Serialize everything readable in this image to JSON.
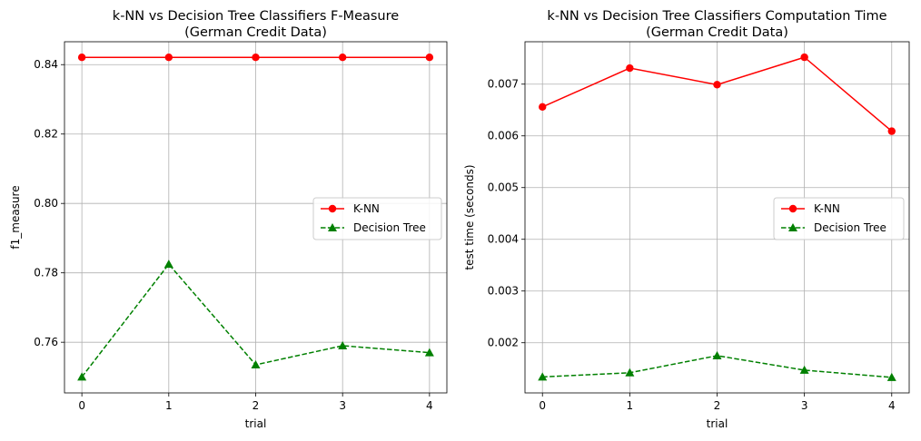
{
  "chart_data": [
    {
      "type": "line",
      "title": "k-NN vs Decision Tree Classifiers F-Measure",
      "subtitle": "(German Credit Data)",
      "xlabel": "trial",
      "ylabel": "f1_measure",
      "x": [
        0,
        1,
        2,
        3,
        4
      ],
      "xticks": [
        "0",
        "1",
        "2",
        "3",
        "4"
      ],
      "yticks": [
        "0.76",
        "0.78",
        "0.80",
        "0.82",
        "0.84"
      ],
      "ytick_values": [
        0.76,
        0.78,
        0.8,
        0.82,
        0.84
      ],
      "xlim": [
        -0.2,
        4.2
      ],
      "ylim": [
        0.7454,
        0.8466
      ],
      "grid": true,
      "legend_position": "center-right",
      "series": [
        {
          "name": "K-NN",
          "values": [
            0.8421,
            0.8421,
            0.8421,
            0.8421,
            0.8421
          ],
          "color": "#ff0000",
          "marker": "circle",
          "linestyle": "solid"
        },
        {
          "name": "Decision Tree",
          "values": [
            0.75,
            0.7825,
            0.7535,
            0.759,
            0.757
          ],
          "color": "#008000",
          "marker": "triangle",
          "linestyle": "dashed"
        }
      ]
    },
    {
      "type": "line",
      "title": "k-NN vs Decision Tree Classifiers Computation Time",
      "subtitle": "(German Credit Data)",
      "xlabel": "trial",
      "ylabel": "test time (seconds)",
      "x": [
        0,
        1,
        2,
        3,
        4
      ],
      "xticks": [
        "0",
        "1",
        "2",
        "3",
        "4"
      ],
      "yticks": [
        "0.002",
        "0.003",
        "0.004",
        "0.005",
        "0.006",
        "0.007"
      ],
      "ytick_values": [
        0.002,
        0.003,
        0.004,
        0.005,
        0.006,
        0.007
      ],
      "xlim": [
        -0.2,
        4.2
      ],
      "ylim": [
        0.00103,
        0.00782
      ],
      "grid": true,
      "legend_position": "center-right",
      "series": [
        {
          "name": "K-NN",
          "values": [
            0.00656,
            0.00731,
            0.00699,
            0.00752,
            0.00609
          ],
          "color": "#ff0000",
          "marker": "circle",
          "linestyle": "solid"
        },
        {
          "name": "Decision Tree",
          "values": [
            0.00134,
            0.00142,
            0.00175,
            0.00147,
            0.00133
          ],
          "color": "#008000",
          "marker": "triangle",
          "linestyle": "dashed"
        }
      ]
    }
  ]
}
